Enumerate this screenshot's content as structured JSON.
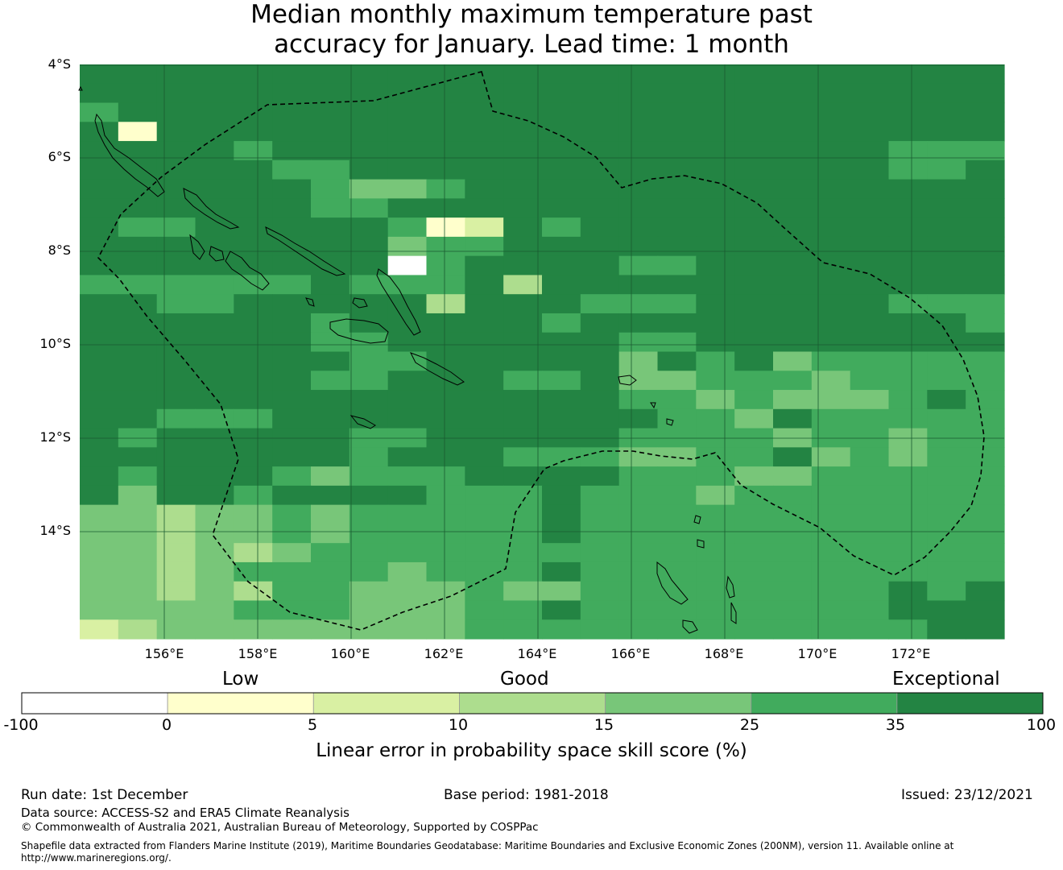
{
  "title": {
    "line1": "Median monthly maximum temperature past",
    "line2": "accuracy for January. Lead time: 1 month"
  },
  "axes": {
    "lat_labels": [
      "4°S",
      "6°S",
      "8°S",
      "10°S",
      "12°S",
      "14°S"
    ],
    "lon_labels": [
      "156°E",
      "158°E",
      "160°E",
      "162°E",
      "164°E",
      "166°E",
      "168°E",
      "170°E",
      "172°E"
    ]
  },
  "grid_cells": {
    "description_note": "category per 0.83deg cell, 0=blank,1=0-5,2=5-10,3=10-15,4=15-25,5=25-35,6=35-100",
    "rows": [
      "666666666666666666666666",
      "666666666666666666666666",
      "566666666666666666666666",
      "616666666666666666666666",
      "666656666666666666666555",
      "666665566666666666666556",
      "666666544566666666666666",
      "666666556666666666666666",
      "655666665126566666666666",
      "666666664556666666666666",
      "666666660566665566666666",
      "555555655563666666666666",
      "665566666366655566666555",
      "666666566666566666666665",
      "666666556666665566666666",
      "666666655666664656455555",
      "666666556665564455545555",
      "666666666666665545444565",
      "665556666666666554655555",
      "656666655666665555455455",
      "666666656665554455645455",
      "656665455566665554455555",
      "646656666555655545555555",
      "443445455555655555555555",
      "443445455555655555555555",
      "443434555555555555555555",
      "443455554555655555555555",
      "443435544454455555555656",
      "444455544455655555555666",
      "234444444455555555555566"
    ]
  },
  "colorbar": {
    "category_labels": {
      "low": "Low",
      "good": "Good",
      "exceptional": "Exceptional"
    },
    "ticks": [
      "-100",
      "0",
      "5",
      "10",
      "15",
      "25",
      "35",
      "100"
    ],
    "colors": [
      "#ffffff",
      "#ffffcc",
      "#d9f0a3",
      "#addd8e",
      "#78c679",
      "#41ab5d",
      "#238443"
    ],
    "title": "Linear error in probability space skill score (%)"
  },
  "footer": {
    "run_date": "Run date: 1st December",
    "base_period": "Base period: 1981-2018",
    "issued": "Issued: 23/12/2021",
    "data_source": "Data source: ACCESS-S2 and ERA5 Climate Reanalysis",
    "copyright": "© Commonwealth of Australia 2021, Australian Bureau of Meteorology, Supported by COSPPac",
    "shapefile_line1": "Shapefile data extracted from Flanders Marine Institute (2019), Maritime Boundaries Geodatabase: Maritime Boundaries and Exclusive Economic Zones (200NM), version 11. Available online at",
    "shapefile_line2": "http://www.marineregions.org/."
  }
}
